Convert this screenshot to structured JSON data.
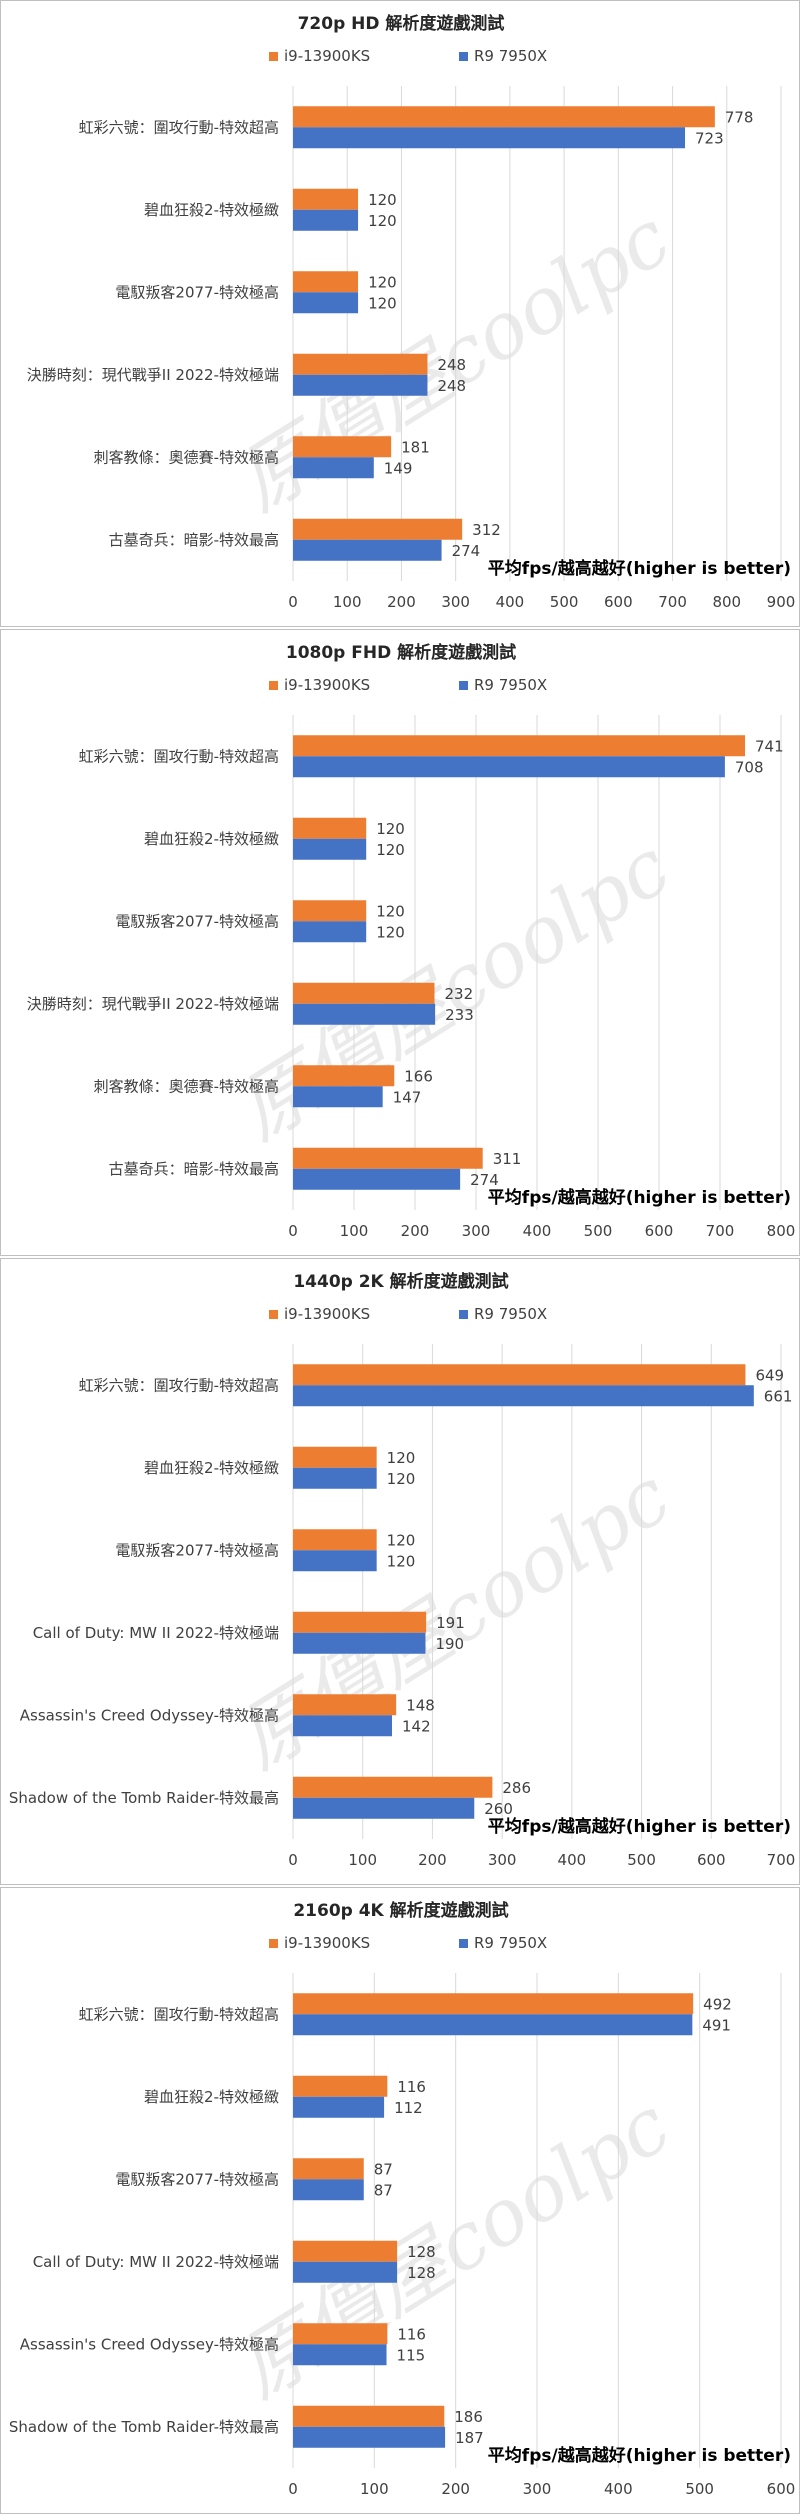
{
  "colors": {
    "i9": "#ED7D31",
    "r9": "#4472C4",
    "grid": "#d9d9d9",
    "watermark": "#d9d9d9"
  },
  "watermark_text": "原價屋coolpc",
  "chart_data": [
    {
      "type": "bar",
      "orientation": "horizontal",
      "title": "720p HD 解析度遊戲測試",
      "xlabel": "平均fps/越高越好(higher is better)",
      "xlim": [
        0,
        900
      ],
      "ticks": [
        "0",
        "100",
        "200",
        "300",
        "400",
        "500",
        "600",
        "700",
        "800",
        "900"
      ],
      "grid": true,
      "legend": "top-center",
      "categories": [
        "虹彩六號：圍攻行動-特效超高",
        "碧血狂殺2-特效極緻",
        "電馭叛客2077-特效極高",
        "決勝時刻：現代戰爭II 2022-特效極端",
        "刺客教條：奧德賽-特效極高",
        "古墓奇兵：暗影-特效最高"
      ],
      "series": [
        {
          "name": "i9-13900KS",
          "values": [
            778,
            120,
            120,
            248,
            181,
            312
          ]
        },
        {
          "name": "R9 7950X",
          "values": [
            723,
            120,
            120,
            248,
            149,
            274
          ]
        }
      ]
    },
    {
      "type": "bar",
      "orientation": "horizontal",
      "title": "1080p FHD 解析度遊戲測試",
      "xlabel": "平均fps/越高越好(higher is better)",
      "xlim": [
        0,
        800
      ],
      "ticks": [
        "0",
        "100",
        "200",
        "300",
        "400",
        "500",
        "600",
        "700",
        "800"
      ],
      "grid": true,
      "legend": "top-center",
      "categories": [
        "虹彩六號：圍攻行動-特效超高",
        "碧血狂殺2-特效極緻",
        "電馭叛客2077-特效極高",
        "決勝時刻：現代戰爭II 2022-特效極端",
        "刺客教條：奧德賽-特效極高",
        "古墓奇兵：暗影-特效最高"
      ],
      "series": [
        {
          "name": "i9-13900KS",
          "values": [
            741,
            120,
            120,
            232,
            166,
            311
          ]
        },
        {
          "name": "R9 7950X",
          "values": [
            708,
            120,
            120,
            233,
            147,
            274
          ]
        }
      ]
    },
    {
      "type": "bar",
      "orientation": "horizontal",
      "title": "1440p 2K 解析度遊戲測試",
      "xlabel": "平均fps/越高越好(higher is better)",
      "xlim": [
        0,
        700
      ],
      "ticks": [
        "0",
        "100",
        "200",
        "300",
        "400",
        "500",
        "600",
        "700"
      ],
      "grid": true,
      "legend": "top-center",
      "categories": [
        "虹彩六號：圍攻行動-特效超高",
        "碧血狂殺2-特效極緻",
        "電馭叛客2077-特效極高",
        "Call of Duty: MW II 2022-特效極端",
        "Assassin's Creed Odyssey-特效極高",
        "Shadow of the Tomb Raider-特效最高"
      ],
      "series": [
        {
          "name": "i9-13900KS",
          "values": [
            649,
            120,
            120,
            191,
            148,
            286
          ]
        },
        {
          "name": "R9 7950X",
          "values": [
            661,
            120,
            120,
            190,
            142,
            260
          ]
        }
      ]
    },
    {
      "type": "bar",
      "orientation": "horizontal",
      "title": "2160p 4K 解析度遊戲測試",
      "xlabel": "平均fps/越高越好(higher is better)",
      "xlim": [
        0,
        600
      ],
      "ticks": [
        "0",
        "100",
        "200",
        "300",
        "400",
        "500",
        "600"
      ],
      "grid": true,
      "legend": "top-center",
      "categories": [
        "虹彩六號：圍攻行動-特效超高",
        "碧血狂殺2-特效極緻",
        "電馭叛客2077-特效極高",
        "Call of Duty: MW II 2022-特效極端",
        "Assassin's Creed Odyssey-特效極高",
        "Shadow of the Tomb Raider-特效最高"
      ],
      "series": [
        {
          "name": "i9-13900KS",
          "values": [
            492,
            116,
            87,
            128,
            116,
            186
          ]
        },
        {
          "name": "R9 7950X",
          "values": [
            491,
            112,
            87,
            128,
            115,
            187
          ]
        }
      ]
    }
  ]
}
